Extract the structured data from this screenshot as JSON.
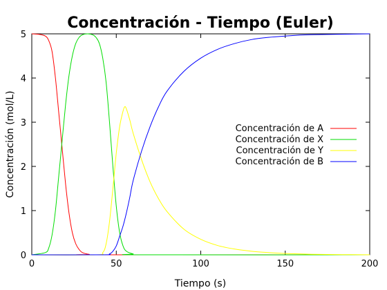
{
  "chart_data": {
    "type": "line",
    "title": "Concentración - Tiempo (Euler)",
    "xlabel": "Tiempo (s)",
    "ylabel": "Concentración (mol/L)",
    "xlim": [
      0,
      200
    ],
    "ylim": [
      0,
      5
    ],
    "xticks": [
      0,
      50,
      100,
      150,
      200
    ],
    "yticks": [
      0,
      1,
      2,
      3,
      4,
      5
    ],
    "grid": false,
    "legend_position": "right",
    "series": [
      {
        "name": "Concentración de A",
        "color": "#ff0000",
        "points": [
          [
            0,
            5
          ],
          [
            4,
            4.99
          ],
          [
            8,
            4.95
          ],
          [
            10,
            4.85
          ],
          [
            12,
            4.6
          ],
          [
            14,
            4.0
          ],
          [
            16,
            3.2
          ],
          [
            18,
            2.4
          ],
          [
            20,
            1.6
          ],
          [
            22,
            0.95
          ],
          [
            24,
            0.5
          ],
          [
            26,
            0.25
          ],
          [
            28,
            0.12
          ],
          [
            30,
            0.05
          ],
          [
            34,
            0.01
          ],
          [
            40,
            0
          ],
          [
            200,
            0
          ]
        ]
      },
      {
        "name": "Concentración de X",
        "color": "#00dd00",
        "points": [
          [
            0,
            0
          ],
          [
            8,
            0.05
          ],
          [
            10,
            0.15
          ],
          [
            12,
            0.45
          ],
          [
            14,
            1.0
          ],
          [
            16,
            1.8
          ],
          [
            18,
            2.6
          ],
          [
            20,
            3.4
          ],
          [
            22,
            4.05
          ],
          [
            24,
            4.5
          ],
          [
            26,
            4.78
          ],
          [
            28,
            4.92
          ],
          [
            30,
            4.98
          ],
          [
            33,
            5.0
          ],
          [
            36,
            4.98
          ],
          [
            38,
            4.92
          ],
          [
            40,
            4.78
          ],
          [
            42,
            4.45
          ],
          [
            44,
            3.9
          ],
          [
            46,
            3.0
          ],
          [
            48,
            2.0
          ],
          [
            50,
            1.1
          ],
          [
            52,
            0.5
          ],
          [
            54,
            0.2
          ],
          [
            56,
            0.08
          ],
          [
            60,
            0.02
          ],
          [
            65,
            0
          ],
          [
            200,
            0
          ]
        ]
      },
      {
        "name": "Concentración de Y",
        "color": "#ffff00",
        "points": [
          [
            0,
            0
          ],
          [
            38,
            0
          ],
          [
            42,
            0.05
          ],
          [
            44,
            0.25
          ],
          [
            46,
            0.75
          ],
          [
            48,
            1.5
          ],
          [
            50,
            2.3
          ],
          [
            52,
            2.9
          ],
          [
            54,
            3.25
          ],
          [
            55,
            3.35
          ],
          [
            56,
            3.3
          ],
          [
            58,
            3.05
          ],
          [
            60,
            2.75
          ],
          [
            65,
            2.15
          ],
          [
            70,
            1.65
          ],
          [
            75,
            1.27
          ],
          [
            80,
            0.98
          ],
          [
            90,
            0.58
          ],
          [
            100,
            0.35
          ],
          [
            110,
            0.21
          ],
          [
            120,
            0.13
          ],
          [
            130,
            0.08
          ],
          [
            140,
            0.05
          ],
          [
            150,
            0.03
          ],
          [
            170,
            0.01
          ],
          [
            200,
            0
          ]
        ]
      },
      {
        "name": "Concentración de B",
        "color": "#0000ff",
        "points": [
          [
            0,
            0
          ],
          [
            42,
            0
          ],
          [
            46,
            0.02
          ],
          [
            48,
            0.08
          ],
          [
            50,
            0.2
          ],
          [
            52,
            0.42
          ],
          [
            54,
            0.65
          ],
          [
            56,
            0.95
          ],
          [
            58,
            1.3
          ],
          [
            60,
            1.68
          ],
          [
            65,
            2.35
          ],
          [
            70,
            2.9
          ],
          [
            75,
            3.35
          ],
          [
            80,
            3.7
          ],
          [
            90,
            4.15
          ],
          [
            100,
            4.45
          ],
          [
            110,
            4.65
          ],
          [
            120,
            4.78
          ],
          [
            130,
            4.87
          ],
          [
            140,
            4.92
          ],
          [
            150,
            4.95
          ],
          [
            165,
            4.98
          ],
          [
            200,
            5.0
          ]
        ]
      }
    ]
  }
}
